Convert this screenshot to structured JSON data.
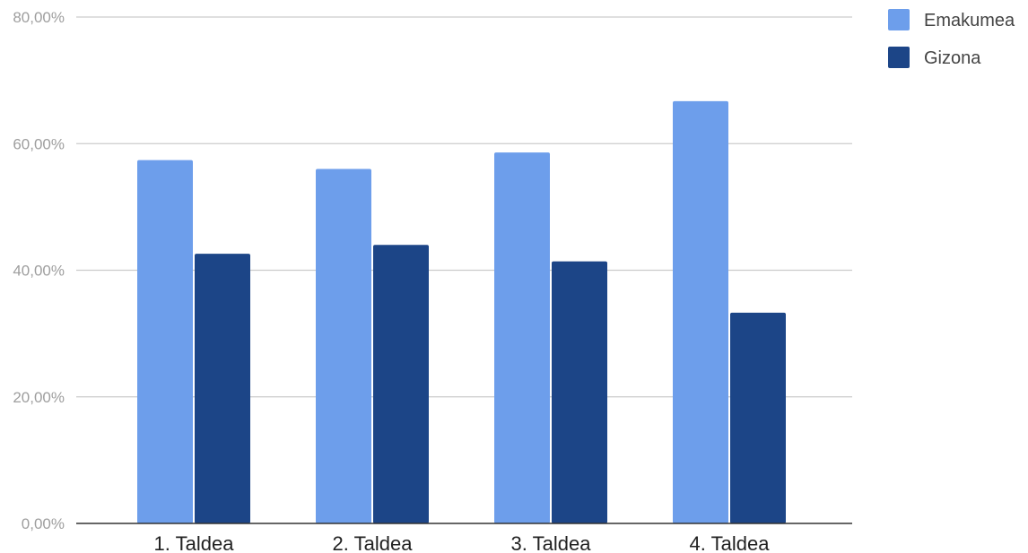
{
  "chart_data": {
    "type": "bar",
    "title": "",
    "xlabel": "",
    "ylabel": "",
    "categories": [
      "1. Taldea",
      "2. Taldea",
      "3. Taldea",
      "4. Taldea"
    ],
    "series": [
      {
        "name": "Emakumea",
        "color": "#6d9eeb",
        "values": [
          57.4,
          56.0,
          58.6,
          66.7
        ]
      },
      {
        "name": "Gizona",
        "color": "#1c4587",
        "values": [
          42.6,
          44.0,
          41.4,
          33.3
        ]
      }
    ],
    "ylim": [
      0,
      80
    ],
    "yticks": [
      0,
      20,
      40,
      60,
      80
    ],
    "ytick_labels": [
      "0,00%",
      "20,00%",
      "40,00%",
      "60,00%",
      "80,00%"
    ],
    "grid": true,
    "legend_position": "top-right",
    "colors": {
      "gridline": "#cccccc",
      "baseline": "#333333"
    }
  }
}
